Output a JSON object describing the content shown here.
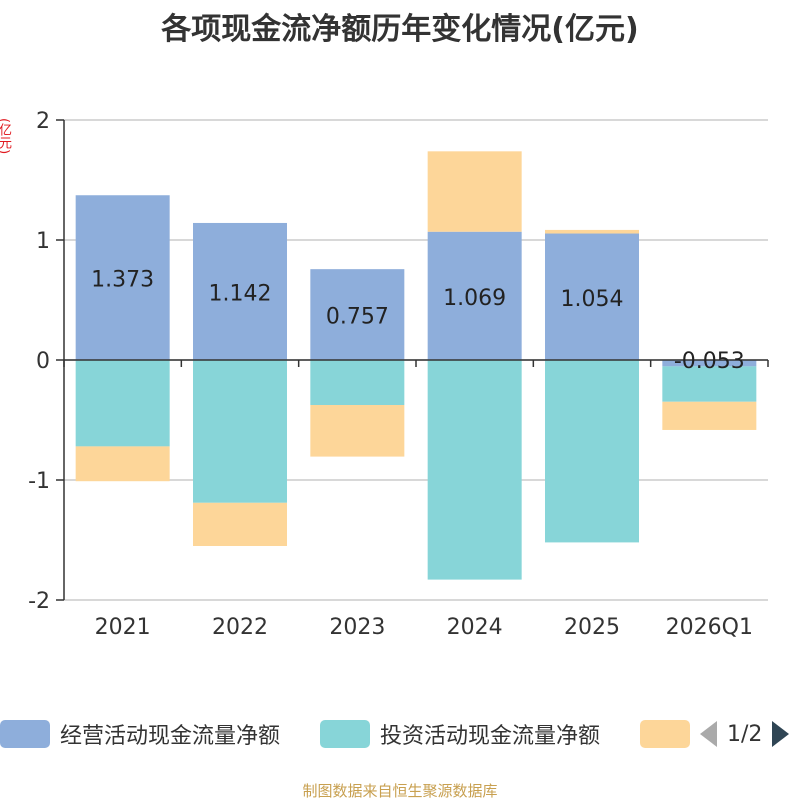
{
  "chart_data": {
    "type": "bar",
    "stacked": true,
    "title": "各项现金流净额历年变化情况(亿元)",
    "ylabel": "(亿元)",
    "categories": [
      "2021",
      "2022",
      "2023",
      "2024",
      "2025",
      "2026Q1"
    ],
    "ylim": [
      -2,
      2
    ],
    "yticks": [
      2,
      1,
      0,
      -1,
      -2
    ],
    "series": [
      {
        "name": "经营活动现金流量净额",
        "color": "#8eaedb",
        "values": [
          1.373,
          1.142,
          0.757,
          1.069,
          1.054,
          -0.053
        ],
        "labels": [
          "1.373",
          "1.142",
          "0.757",
          "1.069",
          "1.054",
          "-0.053"
        ]
      },
      {
        "name": "投资活动现金流量净额",
        "color": "#87d5d8",
        "values": [
          -0.72,
          -1.19,
          -0.375,
          -1.83,
          -1.52,
          -0.295
        ]
      },
      {
        "name": "",
        "color": "#fdd699",
        "values": [
          -0.29,
          -0.36,
          -0.43,
          0.67,
          0.03,
          -0.235
        ]
      }
    ],
    "legend_position": "bottom",
    "grid": true
  },
  "legend": {
    "items": [
      {
        "label": "经营活动现金流量净额",
        "color": "#8eaedb"
      },
      {
        "label": "投资活动现金流量净额",
        "color": "#87d5d8"
      },
      {
        "label": "",
        "color": "#fdd699"
      }
    ],
    "page": "1/2"
  },
  "source": "制图数据来自恒生聚源数据库"
}
